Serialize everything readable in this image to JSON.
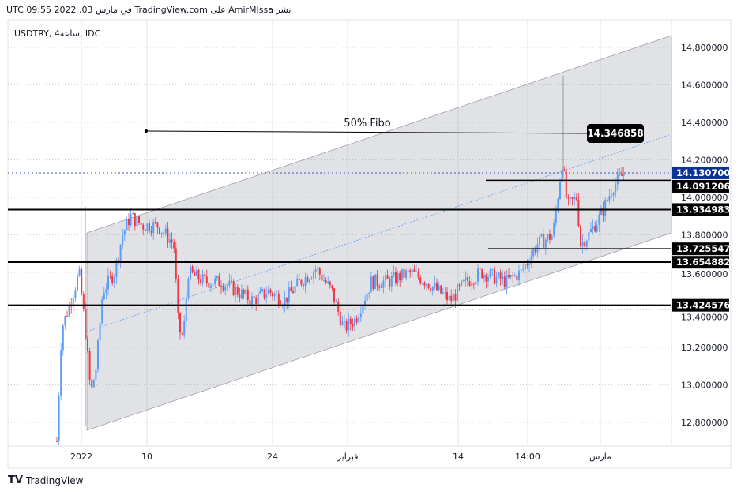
{
  "header": {
    "publish_line": "UTC في مارس 03, 2022 09:55 TradingView.com على AmirMIssa نشر"
  },
  "footer": {
    "brand": "TradingView"
  },
  "chart_data": {
    "type": "candlestick",
    "symbol_label": "USDTRY, 4ساعة, IDC",
    "y_ticks": [
      "14.800000",
      "14.600000",
      "14.400000",
      "14.200000",
      "14.000000",
      "13.800000",
      "13.600000",
      "13.400000",
      "13.200000",
      "13.000000",
      "12.800000"
    ],
    "ylim": [
      12.7,
      14.86
    ],
    "x_ticks": [
      "2022",
      "10",
      "24",
      "فبراير",
      "14",
      "14:00",
      "مارس"
    ],
    "grid": true,
    "colors": {
      "up": "#5b9cf6",
      "down": "#f23645",
      "channel": "#9598a1",
      "current_price": "#0c3299"
    },
    "current_price": "14.130700",
    "price_labels": [
      "14.091206",
      "13.934983",
      "13.725547",
      "13.654882",
      "13.424576"
    ],
    "fibo": {
      "label": "50% Fibo",
      "value": "14.346858"
    },
    "approx_closes": [
      12.7,
      13.3,
      13.45,
      13.6,
      13.3,
      12.95,
      13.1,
      13.5,
      13.6,
      13.8,
      13.9,
      13.85,
      13.85,
      13.75,
      13.3,
      13.25,
      13.6,
      13.55,
      13.55,
      13.5,
      13.45,
      13.5,
      13.45,
      13.55,
      13.62,
      13.5,
      13.3,
      13.35,
      13.55,
      13.55,
      13.6,
      13.55,
      13.45,
      13.55,
      13.6,
      13.55,
      13.6,
      13.75,
      13.8,
      14.2,
      13.95,
      14.0,
      13.75,
      13.8,
      13.9,
      14.05,
      14.13
    ]
  }
}
